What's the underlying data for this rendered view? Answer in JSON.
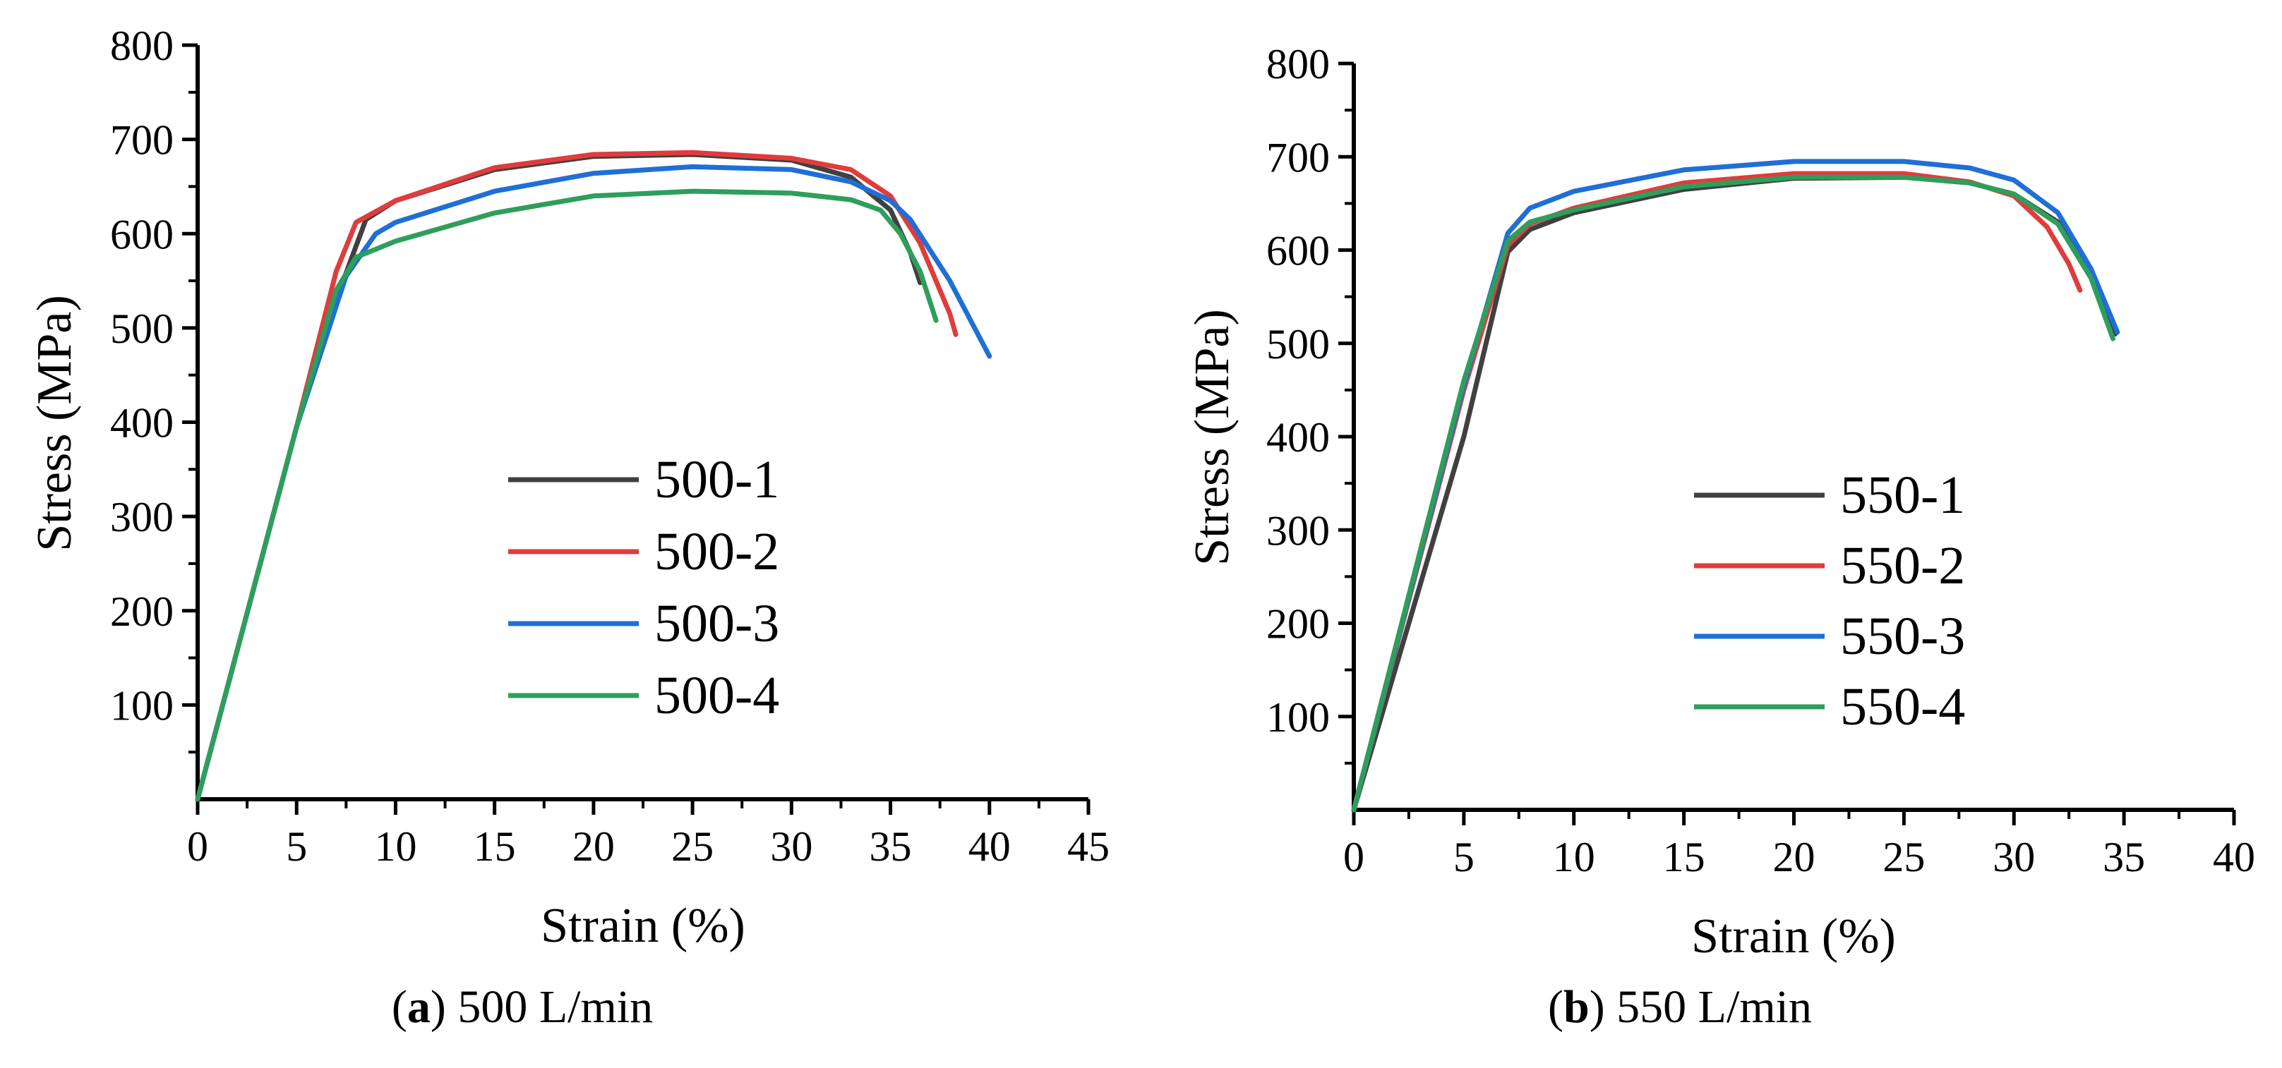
{
  "chart_data": [
    {
      "type": "line",
      "panel": "a",
      "caption_label": "a",
      "caption_text": "500 L/min",
      "xlabel": "Strain (%)",
      "ylabel": "Stress (MPa)",
      "xlim": [
        0,
        45
      ],
      "ylim": [
        0,
        800
      ],
      "xticks": [
        "0",
        "5",
        "10",
        "15",
        "20",
        "25",
        "30",
        "35",
        "40",
        "45"
      ],
      "yticks": [
        "100",
        "200",
        "300",
        "400",
        "500",
        "600",
        "700",
        "800"
      ],
      "legend_position": "center",
      "series": [
        {
          "name": "500-1",
          "color": "#404040",
          "x": [
            0,
            5,
            7,
            8.5,
            10,
            15,
            20,
            25,
            30,
            33,
            35,
            36,
            36.5
          ],
          "y": [
            0,
            395,
            530,
            615,
            635,
            668,
            682,
            684,
            678,
            660,
            625,
            580,
            548
          ]
        },
        {
          "name": "500-2",
          "color": "#e03c3c",
          "x": [
            0,
            5,
            7,
            8,
            10,
            15,
            20,
            25,
            30,
            33,
            35,
            36.5,
            38,
            38.3
          ],
          "y": [
            0,
            395,
            560,
            612,
            635,
            670,
            684,
            686,
            680,
            668,
            640,
            590,
            515,
            493
          ]
        },
        {
          "name": "500-3",
          "color": "#1f6fd6",
          "x": [
            0,
            5,
            7.5,
            9,
            10,
            15,
            20,
            25,
            30,
            33,
            35,
            36,
            38,
            40
          ],
          "y": [
            0,
            395,
            555,
            600,
            612,
            645,
            664,
            671,
            668,
            655,
            635,
            615,
            550,
            470
          ]
        },
        {
          "name": "500-4",
          "color": "#2e9e5c",
          "x": [
            0,
            5,
            7,
            8,
            10,
            15,
            20,
            25,
            30,
            33,
            34.5,
            35.5,
            36.5,
            37.3
          ],
          "y": [
            0,
            395,
            540,
            575,
            592,
            622,
            640,
            645,
            643,
            636,
            625,
            600,
            560,
            508
          ]
        }
      ]
    },
    {
      "type": "line",
      "panel": "b",
      "caption_label": "b",
      "caption_text": "550 L/min",
      "xlabel": "Strain (%)",
      "ylabel": "Stress (MPa)",
      "xlim": [
        0,
        40
      ],
      "ylim": [
        0,
        800
      ],
      "xticks": [
        "0",
        "5",
        "10",
        "15",
        "20",
        "25",
        "30",
        "35",
        "40"
      ],
      "yticks": [
        "100",
        "200",
        "300",
        "400",
        "500",
        "600",
        "700",
        "800"
      ],
      "legend_position": "center",
      "series": [
        {
          "name": "550-1",
          "color": "#404040",
          "x": [
            0,
            5,
            7,
            8,
            10,
            15,
            20,
            25,
            28,
            30,
            32,
            33.5,
            34.6
          ],
          "y": [
            0,
            400,
            598,
            622,
            640,
            665,
            677,
            678,
            672,
            660,
            630,
            580,
            510
          ]
        },
        {
          "name": "550-2",
          "color": "#e03c3c",
          "x": [
            0,
            5,
            7,
            8,
            10,
            15,
            20,
            25,
            28,
            30,
            31.5,
            32.5,
            33
          ],
          "y": [
            0,
            450,
            605,
            628,
            645,
            672,
            682,
            682,
            673,
            658,
            625,
            585,
            557
          ]
        },
        {
          "name": "550-3",
          "color": "#1f6fd6",
          "x": [
            0,
            5,
            7,
            8,
            10,
            15,
            20,
            25,
            28,
            30,
            32,
            33.5,
            34.7
          ],
          "y": [
            0,
            455,
            618,
            645,
            663,
            686,
            695,
            695,
            688,
            675,
            640,
            580,
            512
          ]
        },
        {
          "name": "550-4",
          "color": "#2e9e5c",
          "x": [
            0,
            5,
            7,
            8,
            10,
            15,
            20,
            25,
            28,
            30,
            32,
            33.5,
            34.5
          ],
          "y": [
            0,
            460,
            610,
            630,
            643,
            668,
            678,
            678,
            672,
            660,
            628,
            570,
            505
          ]
        }
      ]
    }
  ]
}
